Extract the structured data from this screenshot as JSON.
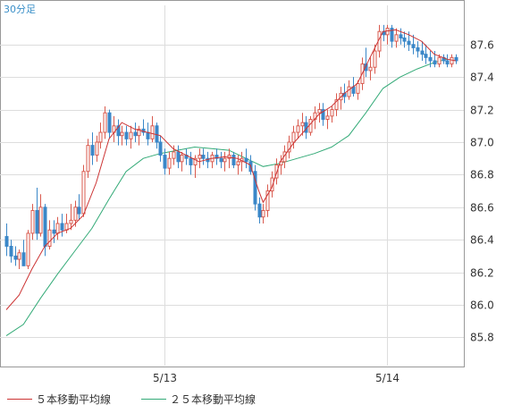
{
  "chart_data": {
    "type": "candlestick",
    "period_label": "30分足",
    "y_range": [
      85.72,
      87.78
    ],
    "y_ticks": [
      "85.8",
      "86.0",
      "86.2",
      "86.4",
      "86.6",
      "86.8",
      "87.0",
      "87.2",
      "87.4",
      "87.6"
    ],
    "x_ticks": [
      {
        "label": "5/13",
        "index": 37
      },
      {
        "label": "5/14",
        "index": 89
      }
    ],
    "bar_count": 106,
    "grid": true,
    "colors": {
      "up": "#d95a4e",
      "down": "#3a87c8",
      "ma5": "#cc3333",
      "ma25": "#33aa77"
    },
    "legend": [
      {
        "name": "５本移動平均線",
        "color": "#cc3333"
      },
      {
        "name": "２５本移動平均線",
        "color": "#33aa77"
      }
    ],
    "ma5": [
      [
        0,
        85.97
      ],
      [
        3,
        86.06
      ],
      [
        6,
        86.22
      ],
      [
        9,
        86.36
      ],
      [
        12,
        86.44
      ],
      [
        15,
        86.47
      ],
      [
        18,
        86.55
      ],
      [
        21,
        86.75
      ],
      [
        24,
        87.02
      ],
      [
        27,
        87.12
      ],
      [
        30,
        87.08
      ],
      [
        33,
        87.06
      ],
      [
        36,
        87.04
      ],
      [
        39,
        86.96
      ],
      [
        42,
        86.92
      ],
      [
        45,
        86.88
      ],
      [
        48,
        86.9
      ],
      [
        51,
        86.91
      ],
      [
        54,
        86.9
      ],
      [
        57,
        86.86
      ],
      [
        59,
        86.7
      ],
      [
        60,
        86.63
      ],
      [
        62,
        86.72
      ],
      [
        64,
        86.88
      ],
      [
        67,
        86.99
      ],
      [
        70,
        87.08
      ],
      [
        73,
        87.17
      ],
      [
        76,
        87.22
      ],
      [
        79,
        87.3
      ],
      [
        82,
        87.36
      ],
      [
        85,
        87.52
      ],
      [
        88,
        87.68
      ],
      [
        91,
        87.69
      ],
      [
        94,
        87.66
      ],
      [
        97,
        87.62
      ],
      [
        100,
        87.54
      ],
      [
        103,
        87.51
      ],
      [
        105,
        87.5
      ]
    ],
    "ma25": [
      [
        0,
        85.81
      ],
      [
        4,
        85.88
      ],
      [
        8,
        86.04
      ],
      [
        12,
        86.19
      ],
      [
        16,
        86.33
      ],
      [
        20,
        86.47
      ],
      [
        24,
        86.65
      ],
      [
        28,
        86.82
      ],
      [
        32,
        86.9
      ],
      [
        36,
        86.93
      ],
      [
        40,
        86.95
      ],
      [
        44,
        86.97
      ],
      [
        48,
        86.96
      ],
      [
        52,
        86.95
      ],
      [
        56,
        86.9
      ],
      [
        60,
        86.85
      ],
      [
        64,
        86.87
      ],
      [
        68,
        86.9
      ],
      [
        72,
        86.93
      ],
      [
        76,
        86.97
      ],
      [
        80,
        87.04
      ],
      [
        84,
        87.18
      ],
      [
        88,
        87.33
      ],
      [
        92,
        87.4
      ],
      [
        96,
        87.45
      ],
      [
        100,
        87.49
      ],
      [
        103,
        87.51
      ]
    ],
    "candles_ohlc": [
      [
        86.42,
        86.5,
        86.3,
        86.36
      ],
      [
        86.36,
        86.4,
        86.26,
        86.3
      ],
      [
        86.3,
        86.36,
        86.24,
        86.28
      ],
      [
        86.28,
        86.34,
        86.22,
        86.32
      ],
      [
        86.32,
        86.4,
        86.26,
        86.24
      ],
      [
        86.24,
        86.46,
        86.22,
        86.44
      ],
      [
        86.44,
        86.62,
        86.4,
        86.58
      ],
      [
        86.58,
        86.72,
        86.4,
        86.44
      ],
      [
        86.44,
        86.68,
        86.42,
        86.6
      ],
      [
        86.6,
        86.62,
        86.3,
        86.36
      ],
      [
        86.36,
        86.52,
        86.34,
        86.46
      ],
      [
        86.46,
        86.52,
        86.38,
        86.44
      ],
      [
        86.44,
        86.54,
        86.4,
        86.5
      ],
      [
        86.5,
        86.56,
        86.42,
        86.46
      ],
      [
        86.46,
        86.56,
        86.44,
        86.5
      ],
      [
        86.5,
        86.62,
        86.46,
        86.52
      ],
      [
        86.52,
        86.64,
        86.48,
        86.6
      ],
      [
        86.6,
        86.68,
        86.52,
        86.56
      ],
      [
        86.56,
        86.86,
        86.54,
        86.82
      ],
      [
        86.82,
        87.02,
        86.78,
        86.98
      ],
      [
        86.98,
        87.06,
        86.86,
        86.92
      ],
      [
        86.92,
        87.04,
        86.88,
        87.0
      ],
      [
        87.0,
        87.12,
        86.96,
        87.06
      ],
      [
        87.06,
        87.22,
        87.02,
        87.18
      ],
      [
        87.18,
        87.2,
        87.02,
        87.06
      ],
      [
        87.06,
        87.16,
        87.0,
        87.1
      ],
      [
        87.1,
        87.14,
        86.98,
        87.04
      ],
      [
        87.04,
        87.1,
        86.98,
        87.06
      ],
      [
        87.06,
        87.1,
        86.98,
        87.02
      ],
      [
        87.02,
        87.1,
        86.96,
        87.06
      ],
      [
        87.06,
        87.12,
        87.0,
        87.04
      ],
      [
        87.04,
        87.1,
        86.98,
        87.08
      ],
      [
        87.08,
        87.14,
        87.04,
        87.06
      ],
      [
        87.06,
        87.12,
        86.98,
        87.02
      ],
      [
        87.02,
        87.16,
        87.0,
        87.1
      ],
      [
        87.1,
        87.12,
        86.96,
        87.0
      ],
      [
        87.0,
        87.04,
        86.88,
        86.92
      ],
      [
        86.92,
        86.96,
        86.8,
        86.84
      ],
      [
        86.84,
        86.94,
        86.8,
        86.9
      ],
      [
        86.9,
        86.98,
        86.86,
        86.94
      ],
      [
        86.94,
        86.98,
        86.84,
        86.88
      ],
      [
        86.88,
        86.94,
        86.82,
        86.92
      ],
      [
        86.92,
        86.96,
        86.86,
        86.9
      ],
      [
        86.9,
        86.94,
        86.8,
        86.86
      ],
      [
        86.86,
        86.92,
        86.78,
        86.9
      ],
      [
        86.9,
        86.96,
        86.84,
        86.92
      ],
      [
        86.92,
        86.96,
        86.86,
        86.9
      ],
      [
        86.9,
        86.94,
        86.84,
        86.88
      ],
      [
        86.88,
        86.94,
        86.84,
        86.92
      ],
      [
        86.92,
        86.96,
        86.86,
        86.9
      ],
      [
        86.9,
        86.94,
        86.84,
        86.88
      ],
      [
        86.88,
        86.94,
        86.82,
        86.9
      ],
      [
        86.9,
        86.96,
        86.84,
        86.92
      ],
      [
        86.92,
        86.94,
        86.84,
        86.86
      ],
      [
        86.86,
        86.92,
        86.8,
        86.88
      ],
      [
        86.88,
        86.94,
        86.82,
        86.9
      ],
      [
        86.9,
        86.96,
        86.84,
        86.88
      ],
      [
        86.88,
        86.92,
        86.8,
        86.82
      ],
      [
        86.82,
        86.86,
        86.58,
        86.62
      ],
      [
        86.62,
        86.66,
        86.5,
        86.54
      ],
      [
        86.54,
        86.62,
        86.5,
        86.58
      ],
      [
        86.58,
        86.74,
        86.54,
        86.7
      ],
      [
        86.7,
        86.82,
        86.66,
        86.78
      ],
      [
        86.78,
        86.9,
        86.74,
        86.86
      ],
      [
        86.86,
        86.92,
        86.8,
        86.88
      ],
      [
        86.88,
        86.98,
        86.84,
        86.94
      ],
      [
        86.94,
        87.04,
        86.9,
        87.0
      ],
      [
        87.0,
        87.1,
        86.96,
        87.06
      ],
      [
        87.06,
        87.14,
        87.02,
        87.1
      ],
      [
        87.1,
        87.18,
        87.04,
        87.12
      ],
      [
        87.12,
        87.16,
        87.02,
        87.06
      ],
      [
        87.06,
        87.16,
        87.04,
        87.14
      ],
      [
        87.14,
        87.22,
        87.08,
        87.18
      ],
      [
        87.18,
        87.24,
        87.12,
        87.2
      ],
      [
        87.2,
        87.24,
        87.1,
        87.14
      ],
      [
        87.14,
        87.2,
        87.08,
        87.16
      ],
      [
        87.16,
        87.22,
        87.12,
        87.2
      ],
      [
        87.2,
        87.3,
        87.16,
        87.26
      ],
      [
        87.26,
        87.34,
        87.2,
        87.3
      ],
      [
        87.3,
        87.36,
        87.24,
        87.28
      ],
      [
        87.28,
        87.38,
        87.26,
        87.34
      ],
      [
        87.34,
        87.4,
        87.28,
        87.3
      ],
      [
        87.3,
        87.38,
        87.26,
        87.36
      ],
      [
        87.36,
        87.52,
        87.32,
        87.48
      ],
      [
        87.48,
        87.58,
        87.4,
        87.44
      ],
      [
        87.44,
        87.52,
        87.38,
        87.46
      ],
      [
        87.46,
        87.6,
        87.42,
        87.56
      ],
      [
        87.56,
        87.72,
        87.52,
        87.68
      ],
      [
        87.68,
        87.72,
        87.62,
        87.66
      ],
      [
        87.66,
        87.72,
        87.6,
        87.7
      ],
      [
        87.7,
        87.72,
        87.58,
        87.62
      ],
      [
        87.62,
        87.7,
        87.58,
        87.66
      ],
      [
        87.66,
        87.7,
        87.6,
        87.64
      ],
      [
        87.64,
        87.68,
        87.58,
        87.62
      ],
      [
        87.62,
        87.68,
        87.56,
        87.6
      ],
      [
        87.6,
        87.66,
        87.54,
        87.58
      ],
      [
        87.58,
        87.62,
        87.52,
        87.56
      ],
      [
        87.56,
        87.62,
        87.5,
        87.54
      ],
      [
        87.54,
        87.6,
        87.48,
        87.52
      ],
      [
        87.52,
        87.56,
        87.46,
        87.5
      ],
      [
        87.5,
        87.56,
        87.46,
        87.48
      ],
      [
        87.48,
        87.54,
        87.46,
        87.52
      ],
      [
        87.52,
        87.54,
        87.48,
        87.5
      ],
      [
        87.5,
        87.54,
        87.46,
        87.48
      ],
      [
        87.48,
        87.54,
        87.46,
        87.52
      ],
      [
        87.52,
        87.54,
        87.48,
        87.5
      ]
    ]
  }
}
